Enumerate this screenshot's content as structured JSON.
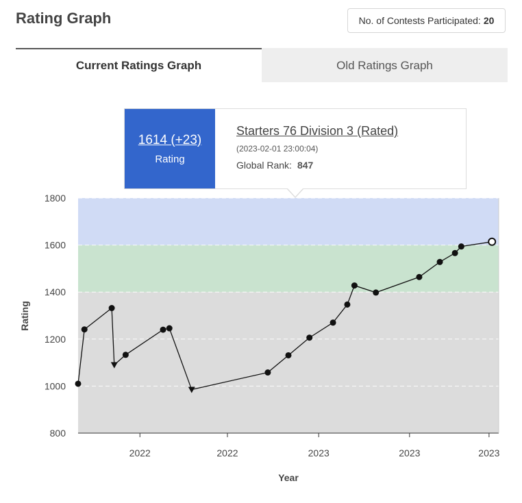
{
  "header": {
    "title": "Rating Graph",
    "contests_label": "No. of Contests Participated:",
    "contests_count": "20"
  },
  "tabs": [
    {
      "label": "Current Ratings Graph",
      "active": true
    },
    {
      "label": "Old Ratings Graph",
      "active": false
    }
  ],
  "tooltip": {
    "rating_text": "1614 (+23)",
    "rating_label": "Rating",
    "contest_name": "Starters 76 Division 3 (Rated)",
    "contest_date": "(2023-02-01 23:00:04)",
    "rank_label": "Global Rank:",
    "rank_value": "847"
  },
  "colors": {
    "band_blue": "#d0dbf5",
    "band_green": "#c9e3cf",
    "band_gray": "#dcdcdc",
    "tooltip_accent": "#3366cc"
  },
  "chart_data": {
    "type": "line",
    "xlabel": "Year",
    "ylabel": "Rating",
    "ylim": [
      800,
      1800
    ],
    "y_ticks": [
      800,
      1000,
      1200,
      1400,
      1600,
      1800
    ],
    "x_tick_labels": [
      "2022",
      "2022",
      "2023",
      "2023",
      "2023"
    ],
    "bands": [
      {
        "from": 800,
        "to": 1400,
        "color": "#dcdcdc"
      },
      {
        "from": 1400,
        "to": 1600,
        "color": "#c9e3cf"
      },
      {
        "from": 1600,
        "to": 1800,
        "color": "#d0dbf5"
      }
    ],
    "grid": true,
    "points": [
      {
        "x": 0.0,
        "y": 1010,
        "marker": "circle"
      },
      {
        "x": 1.5,
        "y": 1241,
        "marker": "circle"
      },
      {
        "x": 8.0,
        "y": 1332,
        "marker": "circle"
      },
      {
        "x": 8.6,
        "y": 1090,
        "marker": "triangle-down"
      },
      {
        "x": 11.3,
        "y": 1133,
        "marker": "circle"
      },
      {
        "x": 20.2,
        "y": 1240,
        "marker": "circle"
      },
      {
        "x": 21.7,
        "y": 1246,
        "marker": "circle"
      },
      {
        "x": 27.0,
        "y": 985,
        "marker": "triangle-down"
      },
      {
        "x": 45.1,
        "y": 1058,
        "marker": "circle"
      },
      {
        "x": 50.0,
        "y": 1131,
        "marker": "circle"
      },
      {
        "x": 55.0,
        "y": 1206,
        "marker": "circle"
      },
      {
        "x": 60.6,
        "y": 1270,
        "marker": "circle"
      },
      {
        "x": 64.0,
        "y": 1347,
        "marker": "circle"
      },
      {
        "x": 65.7,
        "y": 1428,
        "marker": "circle"
      },
      {
        "x": 70.8,
        "y": 1398,
        "marker": "circle"
      },
      {
        "x": 81.1,
        "y": 1464,
        "marker": "circle"
      },
      {
        "x": 86.0,
        "y": 1528,
        "marker": "circle"
      },
      {
        "x": 89.6,
        "y": 1566,
        "marker": "circle"
      },
      {
        "x": 91.1,
        "y": 1594,
        "marker": "circle"
      },
      {
        "x": 98.4,
        "y": 1614,
        "marker": "circle-open"
      }
    ],
    "x_tick_positions": [
      14.7,
      35.5,
      57.2,
      78.8,
      97.7
    ]
  }
}
